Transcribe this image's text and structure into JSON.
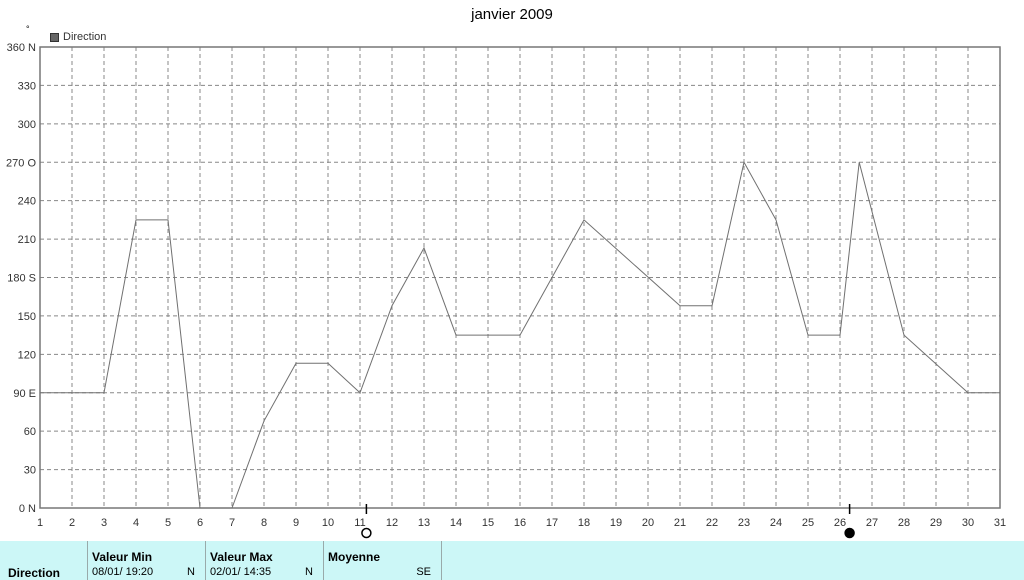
{
  "chart_data": {
    "type": "line",
    "title": "janvier 2009",
    "unit": "°",
    "legend": "Direction",
    "legend_position": "top-left",
    "grid": true,
    "x": [
      1,
      2,
      3,
      4,
      5,
      6,
      7,
      8,
      9,
      10,
      11,
      12,
      13,
      14,
      15,
      16,
      17,
      18,
      19,
      20,
      21,
      22,
      23,
      24,
      25,
      26,
      27,
      28,
      29,
      30,
      31
    ],
    "xlim": [
      1,
      31
    ],
    "ylim": [
      0,
      360
    ],
    "y_ticks": [
      "0 N",
      "30",
      "60",
      "90 E",
      "120",
      "150",
      "180 S",
      "210",
      "240",
      "270 O",
      "300",
      "330",
      "360 N"
    ],
    "x_ticks": [
      "1",
      "2",
      "3",
      "4",
      "5",
      "6",
      "7",
      "8",
      "9",
      "10",
      "11",
      "12",
      "13",
      "14",
      "15",
      "16",
      "17",
      "18",
      "19",
      "20",
      "21",
      "22",
      "23",
      "24",
      "25",
      "26",
      "27",
      "28",
      "29",
      "30",
      "31"
    ],
    "series": [
      {
        "name": "Direction",
        "color": "#707070",
        "points": [
          [
            1,
            90
          ],
          [
            3,
            90
          ],
          [
            4,
            225
          ],
          [
            5,
            225
          ],
          [
            6,
            0
          ],
          [
            7,
            0
          ],
          [
            8,
            68
          ],
          [
            9,
            113
          ],
          [
            10,
            113
          ],
          [
            11,
            90
          ],
          [
            12,
            158
          ],
          [
            13,
            203
          ],
          [
            14,
            135
          ],
          [
            16,
            135
          ],
          [
            18,
            225
          ],
          [
            21,
            158
          ],
          [
            22,
            158
          ],
          [
            23,
            270
          ],
          [
            24,
            225
          ],
          [
            25,
            135
          ],
          [
            26,
            135
          ],
          [
            26.6,
            270
          ],
          [
            28,
            135
          ],
          [
            30,
            90
          ],
          [
            31,
            90
          ]
        ]
      }
    ],
    "markers": [
      {
        "day": 11.2,
        "symbol": "open-circle"
      },
      {
        "day": 26.3,
        "symbol": "filled-circle"
      }
    ]
  },
  "footer": {
    "label": "Direction",
    "min_header": "Valeur Min",
    "min_value": "08/01/ 19:20",
    "min_dir": "N",
    "max_header": "Valeur Max",
    "max_value": "02/01/ 14:35",
    "max_dir": "N",
    "avg_header": "Moyenne",
    "avg_dir": "SE"
  }
}
